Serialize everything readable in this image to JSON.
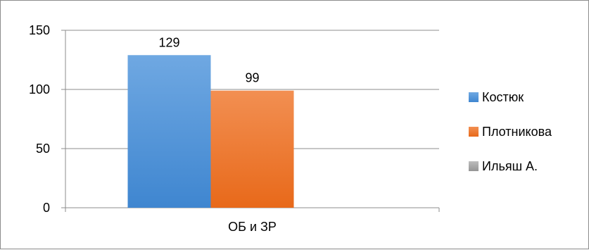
{
  "chart_data": {
    "type": "bar",
    "categories": [
      "ОБ и ЗР"
    ],
    "series": [
      {
        "name": "Костюк",
        "values": [
          129
        ],
        "color": "#4a8fd6"
      },
      {
        "name": "Плотникова",
        "values": [
          99
        ],
        "color": "#f07a28"
      },
      {
        "name": "Ильяш А.",
        "values": [
          null
        ],
        "color": "#a5a5a5"
      }
    ],
    "data_labels": [
      "129",
      "99",
      ""
    ],
    "y_ticks": [
      "0",
      "50",
      "100",
      "150"
    ],
    "ylim": [
      0,
      150
    ],
    "grid": true,
    "legend_position": "right"
  }
}
